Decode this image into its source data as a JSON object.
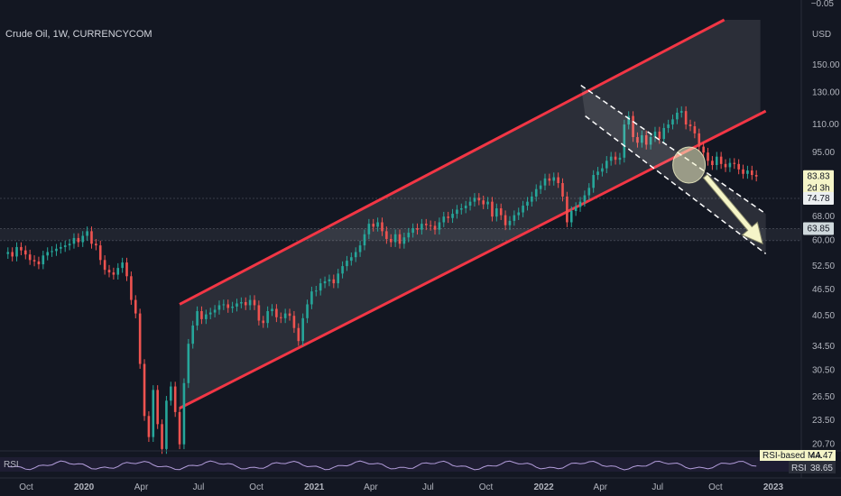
{
  "title": "Crude Oil, 1W, CURRENCYCOM",
  "indicator": {
    "name": "RSI",
    "ma_label": "RSI-based MA",
    "ma_value": "44.47",
    "rsi_value": "38.65"
  },
  "colors": {
    "background": "#131722",
    "up": "#26a69a",
    "down": "#ef5350",
    "channel": "#f23645",
    "channel_fill": "rgba(255,255,255,0.10)",
    "projection": "#f5f5c8",
    "price_badge": "#f5f5c8",
    "rsi_line": "#b39ddb"
  },
  "chart_data": {
    "type": "candlestick",
    "currency_label": "USD",
    "scale": "log",
    "top_label": "−0.05",
    "ylim": [
      20.0,
      190.0
    ],
    "y_ticks": [
      "150.00",
      "130.00",
      "110.00",
      "95.00",
      "83.83",
      "2d 3h",
      "74.78",
      "68.00",
      "63.85",
      "60.00",
      "52.50",
      "46.50",
      "40.50",
      "34.50",
      "30.50",
      "26.50",
      "23.50",
      "20.70"
    ],
    "x_ticks": [
      "Oct",
      "2020",
      "Apr",
      "Jul",
      "Oct",
      "2021",
      "Apr",
      "Jul",
      "Oct",
      "2022",
      "Apr",
      "Jul",
      "Oct",
      "2023"
    ],
    "price_labels": [
      {
        "value": 83.83,
        "text": "83.83",
        "sub": "2d 3h"
      },
      {
        "value": 74.78,
        "text": "74.78"
      },
      {
        "value": 63.85,
        "text": "63.85"
      }
    ],
    "horizontal_levels": [
      74.78,
      63.85,
      60.0
    ],
    "channel": {
      "upper": [
        [
          "2020-06-01",
          43.0
        ],
        [
          "2022-10-15",
          190.0
        ]
      ],
      "lower": [
        [
          "2020-06-01",
          25.0
        ],
        [
          "2022-12-20",
          118.0
        ]
      ],
      "band_top": 190.0
    },
    "down_channel": {
      "upper": [
        [
          "2022-03-01",
          135.0
        ],
        [
          "2022-12-20",
          69.0
        ]
      ],
      "lower": [
        [
          "2022-03-08",
          115.0
        ],
        [
          "2022-12-20",
          56.0
        ]
      ]
    },
    "projection_arrow": [
      [
        "2022-09-15",
        84.0
      ],
      [
        "2022-12-15",
        59.0
      ]
    ],
    "highlight_circle": {
      "date": "2022-08-20",
      "value": 89.0
    },
    "candles_weekly_closes": [
      {
        "start": "2019-09-02",
        "closes": [
          56.5,
          55.2,
          58.0,
          57.0,
          55.8,
          54.2,
          53.8,
          53.0,
          55.5,
          56.5,
          56.8,
          57.5,
          58.0,
          58.5,
          59.0,
          60.8,
          59.5,
          61.5,
          63.0,
          59.0,
          58.5,
          54.2,
          51.5,
          50.8,
          50.2,
          52.0,
          53.5,
          49.8,
          44.0,
          41.0,
          31.5,
          24.0,
          21.5,
          27.5,
          23.0,
          20.2,
          26.0,
          28.0,
          24.5,
          20.7,
          28.5,
          35.0,
          38.5,
          41.5,
          39.8,
          40.8,
          41.2,
          41.8,
          42.8,
          43.0,
          42.2,
          42.5,
          43.2,
          43.5,
          42.8,
          44.0,
          42.8,
          39.5,
          39.0,
          41.5,
          42.0,
          40.2,
          40.0,
          41.0,
          40.5,
          38.0,
          35.5,
          40.0,
          43.0,
          46.0,
          46.2,
          48.0,
          48.5,
          49.0,
          48.0,
          50.5,
          52.5,
          54.0,
          55.0,
          56.5,
          58.5,
          62.0,
          65.5,
          64.5,
          66.0,
          63.0,
          60.5,
          59.5,
          62.0,
          59.0,
          61.0,
          62.5,
          64.0,
          63.5,
          65.5,
          65.0,
          64.8,
          63.5,
          66.0,
          68.0,
          67.5,
          69.0,
          70.5,
          71.0,
          72.0,
          73.5,
          75.0,
          74.0,
          72.5,
          73.5,
          68.0,
          71.0,
          68.5,
          65.0,
          66.5,
          68.5,
          69.5,
          72.0,
          73.5,
          75.5,
          78.5,
          80.0,
          83.0,
          82.0,
          83.5,
          81.0,
          75.5,
          66.0,
          70.0,
          71.5,
          73.5,
          76.0,
          79.0,
          84.5,
          86.0,
          87.5,
          91.0,
          93.0,
          91.5,
          92.5,
          110.0,
          115.0,
          103.0,
          100.0,
          104.0,
          99.0,
          103.0,
          106.0,
          102.0,
          108.0,
          110.0,
          113.0,
          117.0,
          118.0,
          110.0,
          109.0,
          105.0,
          98.0,
          95.0,
          91.0,
          89.0,
          93.0,
          89.5,
          88.0,
          90.0,
          89.5,
          87.0,
          85.0,
          86.5,
          84.5,
          83.83
        ]
      }
    ],
    "rsi": {
      "ma_value": 44.47,
      "value": 38.65
    }
  }
}
